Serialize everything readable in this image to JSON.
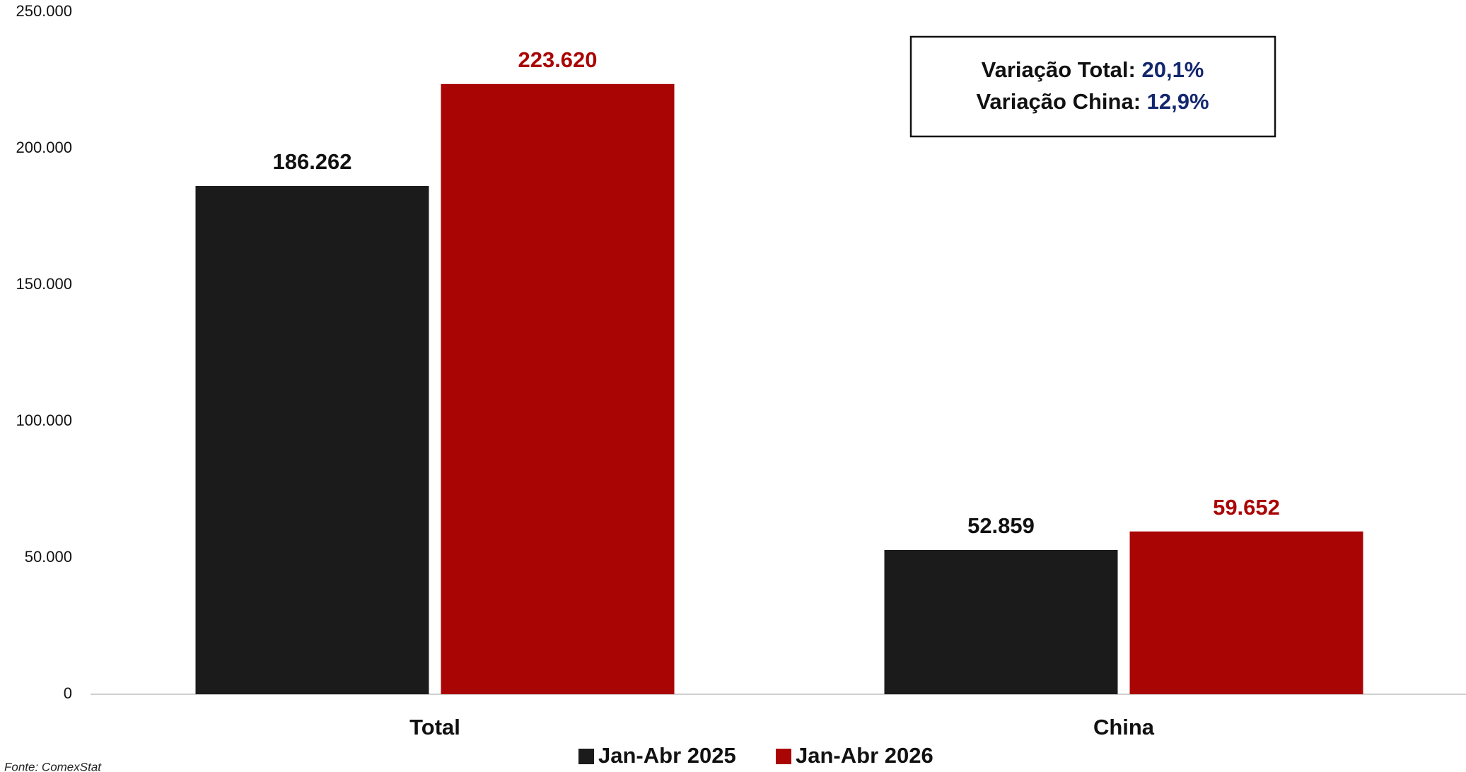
{
  "chart_data": {
    "type": "bar",
    "categories": [
      "Total",
      "China"
    ],
    "series": [
      {
        "name": "Jan-Abr 2025",
        "color": "#1b1b1b",
        "values": [
          186262,
          52859
        ],
        "value_labels": [
          "186.262",
          "52.859"
        ]
      },
      {
        "name": "Jan-Abr 2026",
        "color": "#aa0505",
        "values": [
          223620,
          59652
        ],
        "value_labels": [
          "223.620",
          "59.652"
        ]
      }
    ],
    "ylim": [
      0,
      250000
    ],
    "yticks": [
      0,
      {
        "value": 50000,
        "label": "50.000"
      },
      {
        "value": 100000,
        "label": "100.000"
      },
      {
        "value": 150000,
        "label": "150.000"
      },
      {
        "value": 200000,
        "label": "200.000"
      },
      {
        "value": 250000,
        "label": "250.000"
      }
    ],
    "grid": false,
    "legend": "bottom",
    "annotations": [
      {
        "label": "Variação Total:",
        "value": "20,1%"
      },
      {
        "label": "Variação China:",
        "value": "12,9%"
      }
    ],
    "source": "Fonte: ComexStat"
  }
}
